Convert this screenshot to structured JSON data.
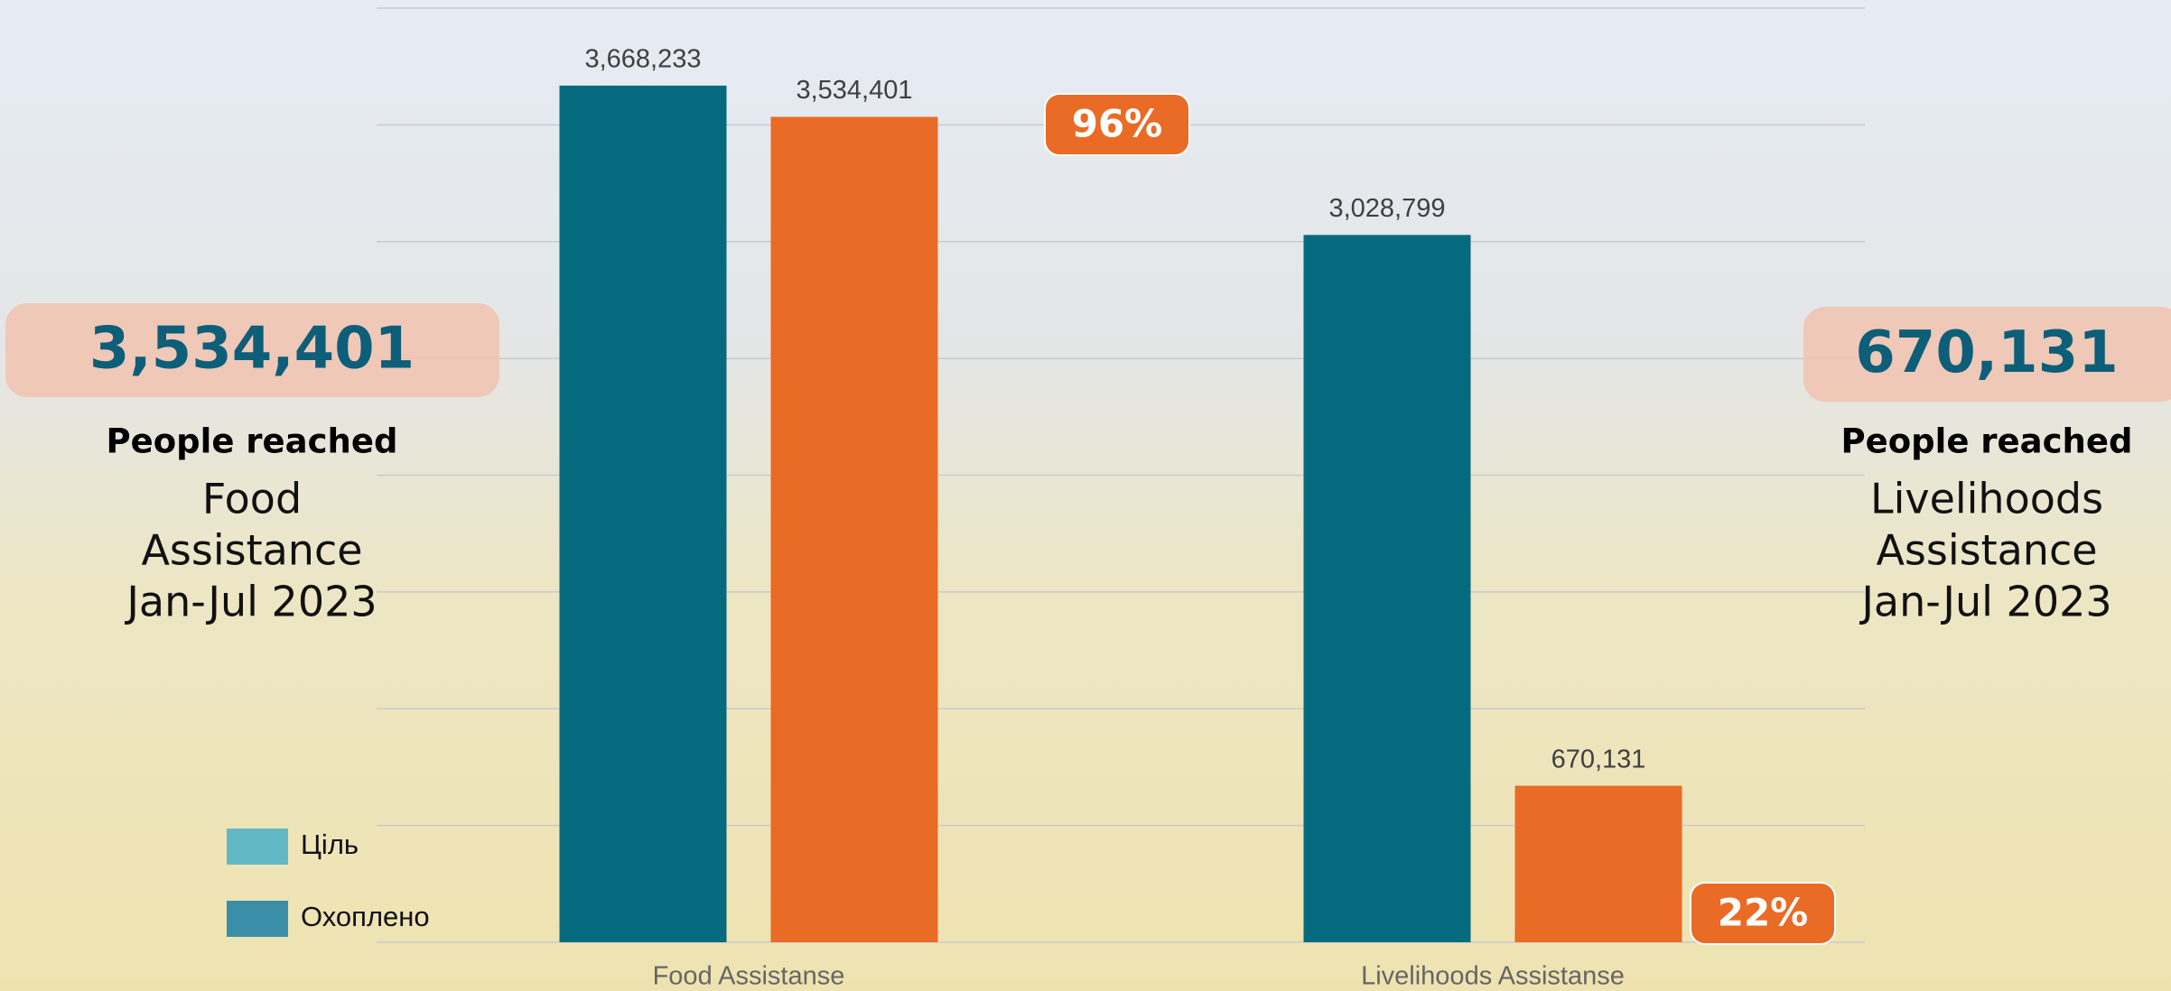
{
  "chart_data": {
    "type": "bar",
    "categories": [
      "Food Assistanse",
      "Livelihoods Assistanse"
    ],
    "series": [
      {
        "name": "Ціль",
        "color": "#066a7e",
        "legend_color": "#62b9c5",
        "values": [
          3668233,
          3028799
        ],
        "value_labels": [
          "3,668,233",
          "3,028,799"
        ]
      },
      {
        "name": "Охоплено",
        "color": "#e96b25",
        "legend_color": "#3b8ea8",
        "values": [
          3534401,
          670131
        ],
        "value_labels": [
          "3,534,401",
          "670,131"
        ]
      }
    ],
    "badges": [
      {
        "value": 96,
        "label": "96%"
      },
      {
        "value": 22,
        "label": "22%"
      }
    ],
    "ylim": [
      0,
      4000000
    ],
    "yticks": [
      0,
      500000,
      1000000,
      1500000,
      2000000,
      2500000,
      3000000,
      3500000,
      4000000
    ],
    "grid": true,
    "legend": "lower-left"
  },
  "panels": [
    {
      "number": "3,534,401",
      "caption": "People reached",
      "lines": [
        "Food",
        "Assistance",
        "Jan-Jul 2023"
      ]
    },
    {
      "number": "670,131",
      "caption": "People reached",
      "lines": [
        "Livelihoods",
        "Assistance",
        "Jan-Jul 2023"
      ]
    }
  ]
}
